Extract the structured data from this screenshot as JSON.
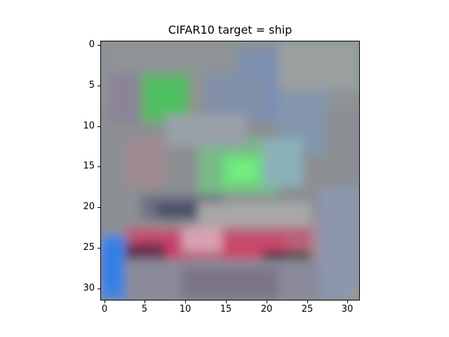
{
  "title": "CIFAR10 target = ship",
  "image": {
    "description_name": "cifar10-ship-sample",
    "y_ticks": [
      "0",
      "5",
      "10",
      "15",
      "20",
      "25",
      "30"
    ],
    "x_ticks": [
      "0",
      "5",
      "10",
      "15",
      "20",
      "25",
      "30"
    ],
    "y_tick_values": [
      0,
      5,
      10,
      15,
      20,
      25,
      30
    ],
    "x_tick_values": [
      0,
      5,
      10,
      15,
      20,
      25,
      30
    ],
    "grid_size": 32,
    "colors": {
      "background_gray": "#8a8f92",
      "green_deck": "#6adf7a",
      "red_hull": "#c8406a",
      "blue_water": "#3a84e0",
      "dark_hull": "#3a2a3a"
    }
  }
}
